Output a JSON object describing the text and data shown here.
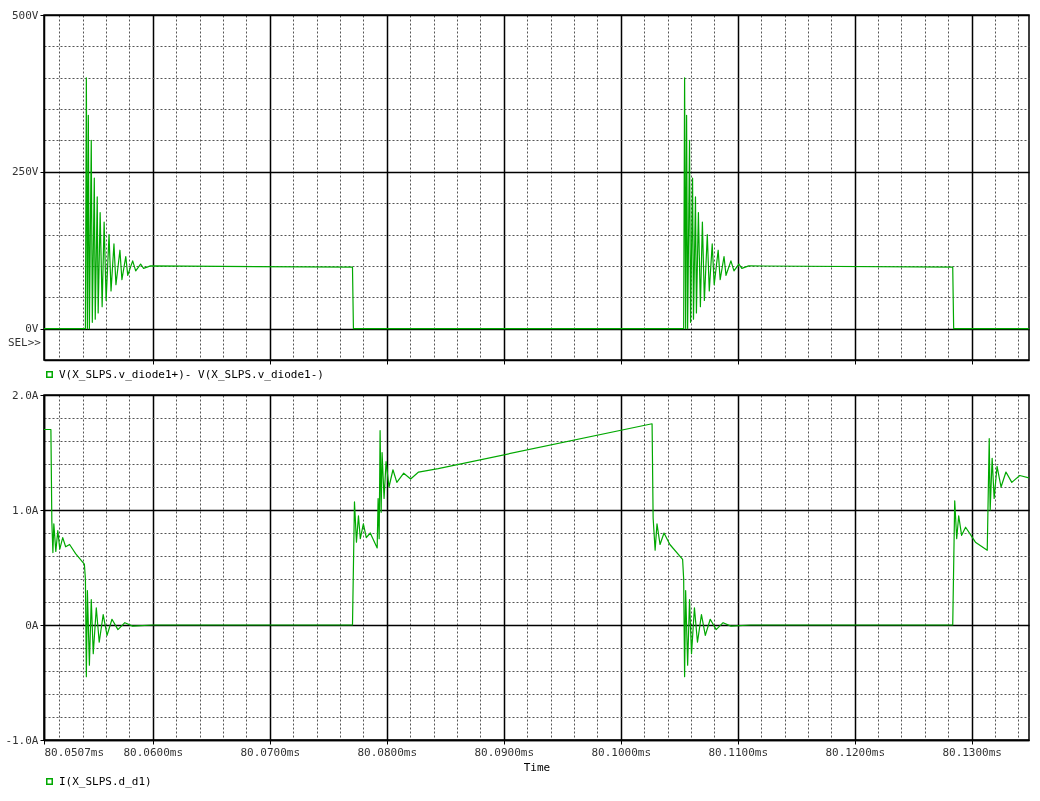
{
  "chart_data": [
    {
      "type": "line",
      "annotations": [
        "SEL>>"
      ],
      "grid": true,
      "legend": "bottom",
      "tick_labels": "y",
      "xlim": [
        80.0507,
        80.1349
      ],
      "xticks": [
        {
          "value": 80.052,
          "label": null
        },
        {
          "value": 80.054,
          "label": null
        },
        {
          "value": 80.056,
          "label": null
        },
        {
          "value": 80.058,
          "label": null
        },
        80.06,
        {
          "value": 80.062,
          "label": null
        },
        {
          "value": 80.064,
          "label": null
        },
        {
          "value": 80.066,
          "label": null
        },
        {
          "value": 80.068,
          "label": null
        },
        80.07,
        {
          "value": 80.072,
          "label": null
        },
        {
          "value": 80.074,
          "label": null
        },
        {
          "value": 80.076,
          "label": null
        },
        {
          "value": 80.078,
          "label": null
        },
        80.08,
        {
          "value": 80.082,
          "label": null
        },
        {
          "value": 80.084,
          "label": null
        },
        {
          "value": 80.086,
          "label": null
        },
        {
          "value": 80.088,
          "label": null
        },
        80.09,
        {
          "value": 80.092,
          "label": null
        },
        {
          "value": 80.094,
          "label": null
        },
        {
          "value": 80.096,
          "label": null
        },
        {
          "value": 80.098,
          "label": null
        },
        80.1,
        {
          "value": 80.102,
          "label": null
        },
        {
          "value": 80.104,
          "label": null
        },
        {
          "value": 80.106,
          "label": null
        },
        {
          "value": 80.108,
          "label": null
        },
        80.11,
        {
          "value": 80.112,
          "label": null
        },
        {
          "value": 80.114,
          "label": null
        },
        {
          "value": 80.116,
          "label": null
        },
        {
          "value": 80.118,
          "label": null
        },
        80.12,
        {
          "value": 80.122,
          "label": null
        },
        {
          "value": 80.124,
          "label": null
        },
        {
          "value": 80.126,
          "label": null
        },
        {
          "value": 80.128,
          "label": null
        },
        80.13,
        {
          "value": 80.132,
          "label": null
        },
        {
          "value": 80.134,
          "label": null
        }
      ],
      "ylim": [
        -50,
        500
      ],
      "yticks": [
        {
          "value": 0,
          "label": "0V"
        },
        {
          "value": 50,
          "label": null
        },
        {
          "value": 100,
          "label": null
        },
        {
          "value": 150,
          "label": null
        },
        {
          "value": 200,
          "label": null
        },
        {
          "value": 250,
          "label": "250V"
        },
        {
          "value": 300,
          "label": null
        },
        {
          "value": 350,
          "label": null
        },
        {
          "value": 400,
          "label": null
        },
        {
          "value": 450,
          "label": null
        },
        {
          "value": 500,
          "label": "500V"
        }
      ],
      "series": [
        {
          "name": "V(X_SLPS.v_diode1+)- V(X_SLPS.v_diode1-)",
          "color": "#00a800",
          "x": [
            80.0507,
            80.05424,
            80.05432,
            80.05441,
            80.05449,
            80.05458,
            80.05474,
            80.05483,
            80.055,
            80.05508,
            80.05525,
            80.05533,
            80.0555,
            80.05567,
            80.05584,
            80.05601,
            80.05626,
            80.05643,
            80.05668,
            80.05685,
            80.05719,
            80.05736,
            80.05769,
            80.05786,
            80.05828,
            80.05854,
            80.05896,
            80.05921,
            80.0598,
            80.07707,
            80.07715,
            80.10538,
            80.10546,
            80.10555,
            80.10563,
            80.10572,
            80.10588,
            80.10597,
            80.10614,
            80.10622,
            80.10639,
            80.10647,
            80.10664,
            80.10681,
            80.10698,
            80.10715,
            80.1074,
            80.10757,
            80.10782,
            80.10799,
            80.10833,
            80.1085,
            80.10883,
            80.109,
            80.10942,
            80.10968,
            80.1101,
            80.11035,
            80.11094,
            80.12838,
            80.12846,
            80.1349
          ],
          "values": [
            0,
            0,
            400,
            0,
            340,
            0,
            300,
            10,
            240,
            15,
            210,
            25,
            185,
            35,
            170,
            45,
            150,
            60,
            135,
            70,
            125,
            78,
            115,
            85,
            108,
            92,
            103,
            96,
            100,
            98,
            0,
            0,
            400,
            0,
            340,
            0,
            300,
            10,
            240,
            15,
            210,
            25,
            185,
            35,
            170,
            45,
            150,
            60,
            135,
            70,
            125,
            78,
            115,
            85,
            108,
            92,
            103,
            96,
            100,
            98,
            0,
            0
          ]
        }
      ]
    },
    {
      "type": "line",
      "xlabel": "Time",
      "grid": true,
      "legend": "bottom",
      "xlim": [
        80.0507,
        80.1349
      ],
      "xticks": [
        {
          "value": 80.0507,
          "label": "80.0507ms"
        },
        {
          "value": 80.052,
          "label": null
        },
        {
          "value": 80.054,
          "label": null
        },
        {
          "value": 80.056,
          "label": null
        },
        {
          "value": 80.058,
          "label": null
        },
        {
          "value": 80.06,
          "label": "80.0600ms"
        },
        {
          "value": 80.062,
          "label": null
        },
        {
          "value": 80.064,
          "label": null
        },
        {
          "value": 80.066,
          "label": null
        },
        {
          "value": 80.068,
          "label": null
        },
        {
          "value": 80.07,
          "label": "80.0700ms"
        },
        {
          "value": 80.072,
          "label": null
        },
        {
          "value": 80.074,
          "label": null
        },
        {
          "value": 80.076,
          "label": null
        },
        {
          "value": 80.078,
          "label": null
        },
        {
          "value": 80.08,
          "label": "80.0800ms"
        },
        {
          "value": 80.082,
          "label": null
        },
        {
          "value": 80.084,
          "label": null
        },
        {
          "value": 80.086,
          "label": null
        },
        {
          "value": 80.088,
          "label": null
        },
        {
          "value": 80.09,
          "label": "80.0900ms"
        },
        {
          "value": 80.092,
          "label": null
        },
        {
          "value": 80.094,
          "label": null
        },
        {
          "value": 80.096,
          "label": null
        },
        {
          "value": 80.098,
          "label": null
        },
        {
          "value": 80.1,
          "label": "80.1000ms"
        },
        {
          "value": 80.102,
          "label": null
        },
        {
          "value": 80.104,
          "label": null
        },
        {
          "value": 80.106,
          "label": null
        },
        {
          "value": 80.108,
          "label": null
        },
        {
          "value": 80.11,
          "label": "80.1100ms"
        },
        {
          "value": 80.112,
          "label": null
        },
        {
          "value": 80.114,
          "label": null
        },
        {
          "value": 80.116,
          "label": null
        },
        {
          "value": 80.118,
          "label": null
        },
        {
          "value": 80.12,
          "label": "80.1200ms"
        },
        {
          "value": 80.122,
          "label": null
        },
        {
          "value": 80.124,
          "label": null
        },
        {
          "value": 80.126,
          "label": null
        },
        {
          "value": 80.128,
          "label": null
        },
        {
          "value": 80.13,
          "label": "80.1300ms"
        },
        {
          "value": 80.132,
          "label": null
        },
        {
          "value": 80.134,
          "label": null
        }
      ],
      "ylim": [
        -1,
        2
      ],
      "yticks": [
        {
          "value": -1,
          "label": "-1.0A"
        },
        {
          "value": -0.8,
          "label": null
        },
        {
          "value": -0.6,
          "label": null
        },
        {
          "value": -0.4,
          "label": null
        },
        {
          "value": -0.2,
          "label": null
        },
        {
          "value": 0,
          "label": "0A"
        },
        {
          "value": 0.2,
          "label": null
        },
        {
          "value": 0.4,
          "label": null
        },
        {
          "value": 0.6,
          "label": null
        },
        {
          "value": 0.8,
          "label": null
        },
        {
          "value": 1,
          "label": "1.0A"
        },
        {
          "value": 1.2,
          "label": null
        },
        {
          "value": 1.4,
          "label": null
        },
        {
          "value": 1.6,
          "label": null
        },
        {
          "value": 1.8,
          "label": null
        },
        {
          "value": 2,
          "label": "2.0A"
        }
      ],
      "series": [
        {
          "name": "I(X_SLPS.d_d1)",
          "color": "#00a800",
          "x": [
            80.0507,
            80.05129,
            80.05137,
            80.05146,
            80.05154,
            80.05171,
            80.05188,
            80.05205,
            80.0523,
            80.05255,
            80.05289,
            80.0534,
            80.0539,
            80.05415,
            80.05424,
            80.05432,
            80.05441,
            80.05458,
            80.05474,
            80.05491,
            80.05517,
            80.05542,
            80.05576,
            80.05609,
            80.05651,
            80.05702,
            80.05761,
            80.05828,
            80.05997,
            80.07707,
            80.07724,
            80.07741,
            80.07758,
            80.07774,
            80.078,
            80.07825,
            80.07859,
            80.07918,
            80.07926,
            80.07935,
            80.07943,
            80.07952,
            80.0796,
            80.07977,
            80.07994,
            80.08019,
            80.08053,
            80.08086,
            80.08145,
            80.08204,
            80.08272,
            80.0844,
            80.10268,
            80.10277,
            80.10294,
            80.1031,
            80.10336,
            80.1037,
            80.1042,
            80.10529,
            80.10538,
            80.10546,
            80.10555,
            80.10572,
            80.10588,
            80.10605,
            80.1063,
            80.10656,
            80.1069,
            80.10723,
            80.10765,
            80.10816,
            80.10875,
            80.10942,
            80.11111,
            80.12838,
            80.12855,
            80.12872,
            80.12889,
            80.12914,
            80.12948,
            80.13032,
            80.13133,
            80.1315,
            80.13158,
            80.13175,
            80.13192,
            80.13217,
            80.13251,
            80.13293,
            80.13343,
            80.13411,
            80.1349
          ],
          "values": [
            1.7,
            1.7,
            0.9,
            0.63,
            0.88,
            0.64,
            0.82,
            0.66,
            0.76,
            0.68,
            0.7,
            0.62,
            0.56,
            0.53,
            0.4,
            -0.45,
            0.3,
            -0.35,
            0.22,
            -0.25,
            0.15,
            -0.15,
            0.09,
            -0.09,
            0.05,
            -0.04,
            0.02,
            -0.01,
            0,
            0,
            1.07,
            0.72,
            0.95,
            0.75,
            0.88,
            0.76,
            0.8,
            0.67,
            1.1,
            0.75,
            1.69,
            0.98,
            1.5,
            1.1,
            1.42,
            1.2,
            1.35,
            1.24,
            1.32,
            1.27,
            1.33,
            1.36,
            1.75,
            0.93,
            0.65,
            0.88,
            0.7,
            0.8,
            0.7,
            0.57,
            0.4,
            -0.45,
            0.3,
            -0.35,
            0.22,
            -0.25,
            0.15,
            -0.15,
            0.09,
            -0.09,
            0.05,
            -0.04,
            0.02,
            -0.01,
            0,
            0,
            1.08,
            0.75,
            0.95,
            0.78,
            0.85,
            0.72,
            0.65,
            1.62,
            1.0,
            1.45,
            1.1,
            1.38,
            1.2,
            1.33,
            1.24,
            1.3,
            1.28
          ]
        }
      ]
    }
  ]
}
